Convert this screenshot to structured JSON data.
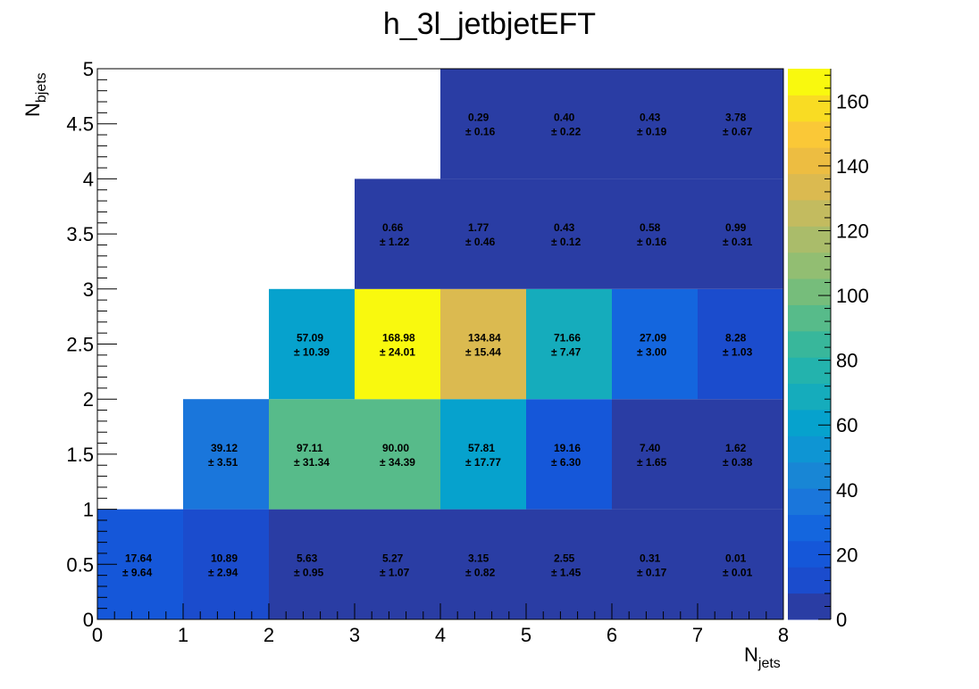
{
  "chart_data": {
    "type": "heatmap",
    "title": "h_3l_jetbjetEFT",
    "xlabel_main": "N",
    "xlabel_sub": "jets",
    "ylabel_main": "N",
    "ylabel_sub": "bjets",
    "xlim": [
      0,
      8
    ],
    "ylim": [
      0,
      5
    ],
    "zlim": [
      0,
      170
    ],
    "x_ticks": [
      "0",
      "1",
      "2",
      "3",
      "4",
      "5",
      "6",
      "7",
      "8"
    ],
    "y_ticks": [
      "0",
      "0.5",
      "1",
      "1.5",
      "2",
      "2.5",
      "3",
      "3.5",
      "4",
      "4.5",
      "5"
    ],
    "z_ticks": [
      "0",
      "20",
      "40",
      "60",
      "80",
      "100",
      "120",
      "140",
      "160"
    ],
    "cells": [
      {
        "x": 0,
        "y": 0,
        "value": 17.64,
        "label": "17.64",
        "error": "± 9.64"
      },
      {
        "x": 1,
        "y": 0,
        "value": 10.89,
        "label": "10.89",
        "error": "± 2.94"
      },
      {
        "x": 2,
        "y": 0,
        "value": 5.63,
        "label": "5.63",
        "error": "± 0.95"
      },
      {
        "x": 3,
        "y": 0,
        "value": 5.27,
        "label": "5.27",
        "error": "± 1.07"
      },
      {
        "x": 4,
        "y": 0,
        "value": 3.15,
        "label": "3.15",
        "error": "± 0.82"
      },
      {
        "x": 5,
        "y": 0,
        "value": 2.55,
        "label": "2.55",
        "error": "± 1.45"
      },
      {
        "x": 6,
        "y": 0,
        "value": 0.31,
        "label": "0.31",
        "error": "± 0.17"
      },
      {
        "x": 7,
        "y": 0,
        "value": 0.01,
        "label": "0.01",
        "error": "± 0.01"
      },
      {
        "x": 1,
        "y": 1,
        "value": 39.12,
        "label": "39.12",
        "error": "± 3.51"
      },
      {
        "x": 2,
        "y": 1,
        "value": 97.11,
        "label": "97.11",
        "error": "± 31.34"
      },
      {
        "x": 3,
        "y": 1,
        "value": 90.0,
        "label": "90.00",
        "error": "± 34.39"
      },
      {
        "x": 4,
        "y": 1,
        "value": 57.81,
        "label": "57.81",
        "error": "± 17.77"
      },
      {
        "x": 5,
        "y": 1,
        "value": 19.16,
        "label": "19.16",
        "error": "± 6.30"
      },
      {
        "x": 6,
        "y": 1,
        "value": 7.4,
        "label": "7.40",
        "error": "± 1.65"
      },
      {
        "x": 7,
        "y": 1,
        "value": 1.62,
        "label": "1.62",
        "error": "± 0.38"
      },
      {
        "x": 2,
        "y": 2,
        "value": 57.09,
        "label": "57.09",
        "error": "± 10.39"
      },
      {
        "x": 3,
        "y": 2,
        "value": 168.98,
        "label": "168.98",
        "error": "± 24.01"
      },
      {
        "x": 4,
        "y": 2,
        "value": 134.84,
        "label": "134.84",
        "error": "± 15.44"
      },
      {
        "x": 5,
        "y": 2,
        "value": 71.66,
        "label": "71.66",
        "error": "± 7.47"
      },
      {
        "x": 6,
        "y": 2,
        "value": 27.09,
        "label": "27.09",
        "error": "± 3.00"
      },
      {
        "x": 7,
        "y": 2,
        "value": 8.28,
        "label": "8.28",
        "error": "± 1.03"
      },
      {
        "x": 3,
        "y": 3,
        "value": 0.66,
        "label": "0.66",
        "error": "± 1.22"
      },
      {
        "x": 4,
        "y": 3,
        "value": 1.77,
        "label": "1.77",
        "error": "± 0.46"
      },
      {
        "x": 5,
        "y": 3,
        "value": 0.43,
        "label": "0.43",
        "error": "± 0.12"
      },
      {
        "x": 6,
        "y": 3,
        "value": 0.58,
        "label": "0.58",
        "error": "± 0.16"
      },
      {
        "x": 7,
        "y": 3,
        "value": 0.99,
        "label": "0.99",
        "error": "± 0.31"
      },
      {
        "x": 4,
        "y": 4,
        "value": 0.29,
        "label": "0.29",
        "error": "± 0.16"
      },
      {
        "x": 5,
        "y": 4,
        "value": 0.4,
        "label": "0.40",
        "error": "± 0.22"
      },
      {
        "x": 6,
        "y": 4,
        "value": 0.43,
        "label": "0.43",
        "error": "± 0.19"
      },
      {
        "x": 7,
        "y": 4,
        "value": 3.78,
        "label": "3.78",
        "error": "± 0.67"
      }
    ],
    "palette": [
      "#2a3da4",
      "#1b4ccd",
      "#1557d9",
      "#1466de",
      "#1a76db",
      "#1886d5",
      "#0e95d3",
      "#06a2cd",
      "#15acbc",
      "#23b3ad",
      "#38b79b",
      "#57bb8a",
      "#76bd7b",
      "#92be72",
      "#aabc6a",
      "#c3bb5f",
      "#dbba50",
      "#edbd41",
      "#fac837",
      "#f9dc23",
      "#f9f90e"
    ],
    "grid": false,
    "legend": "colorbar-right"
  }
}
